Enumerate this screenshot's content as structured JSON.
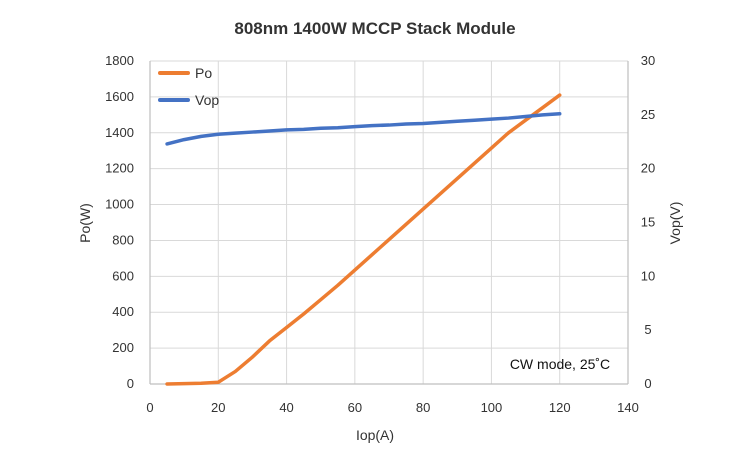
{
  "chart_data": {
    "type": "line",
    "title": "808nm 1400W MCCP Stack Module",
    "xlabel": "Iop(A)",
    "ylabel": "Po(W)",
    "y2label": "Vop(V)",
    "xlim": [
      0,
      140
    ],
    "ylim": [
      0,
      1800
    ],
    "y2lim": [
      0,
      30
    ],
    "x_ticks": [
      "0",
      "20",
      "40",
      "60",
      "80",
      "100",
      "120",
      "140"
    ],
    "y_ticks": [
      "0",
      "200",
      "400",
      "600",
      "800",
      "1000",
      "1200",
      "1400",
      "1600",
      "1800"
    ],
    "y2_ticks": [
      "0",
      "5",
      "10",
      "15",
      "20",
      "25",
      "30"
    ],
    "grid": true,
    "legend_position": "top-left",
    "annotation": "CW mode, 25˚C",
    "colors": {
      "po": "#ED7D31",
      "vop": "#4472C4",
      "grid": "#D9D9D9",
      "axis": "#BFBFBF",
      "text": "#333333"
    },
    "series": [
      {
        "name": "Po",
        "axis": "left",
        "x": [
          5,
          10,
          15,
          20,
          25,
          30,
          35,
          40,
          45,
          50,
          55,
          60,
          65,
          70,
          75,
          80,
          85,
          90,
          95,
          100,
          105,
          110,
          115,
          120
        ],
        "values": [
          0,
          2,
          4,
          10,
          70,
          150,
          240,
          315,
          390,
          470,
          550,
          635,
          720,
          805,
          890,
          975,
          1060,
          1145,
          1230,
          1315,
          1400,
          1470,
          1540,
          1610
        ]
      },
      {
        "name": "Vop",
        "axis": "right",
        "x": [
          5,
          10,
          15,
          20,
          25,
          30,
          35,
          40,
          45,
          50,
          55,
          60,
          65,
          70,
          75,
          80,
          85,
          90,
          95,
          100,
          105,
          110,
          115,
          120
        ],
        "values": [
          22.3,
          22.7,
          23.0,
          23.2,
          23.3,
          23.4,
          23.5,
          23.6,
          23.65,
          23.75,
          23.8,
          23.9,
          24.0,
          24.05,
          24.15,
          24.2,
          24.3,
          24.4,
          24.5,
          24.6,
          24.7,
          24.85,
          25.0,
          25.1
        ]
      }
    ]
  }
}
